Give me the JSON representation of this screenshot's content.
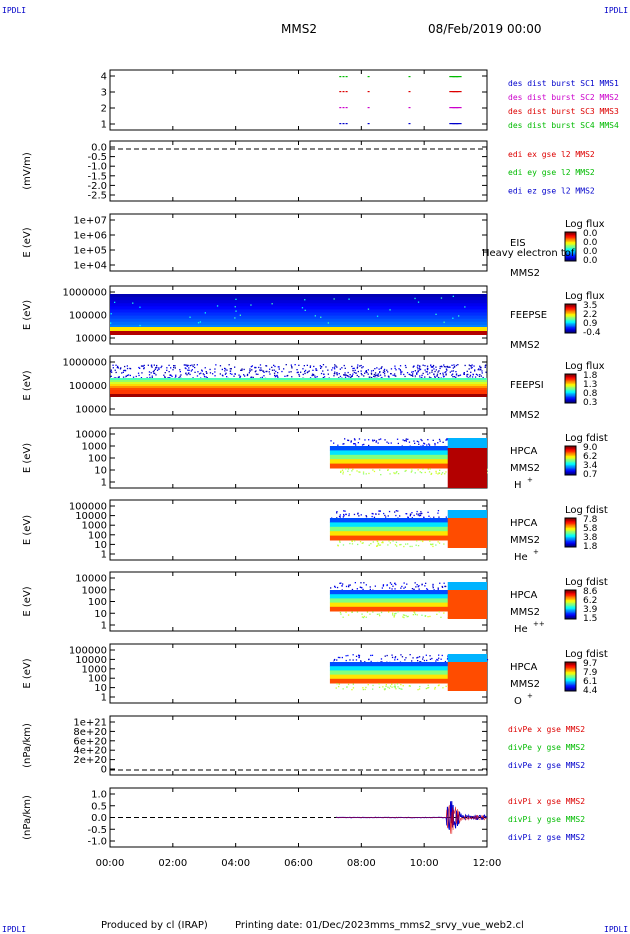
{
  "corner_label": "IPDLI",
  "header": {
    "mission": "MMS2",
    "date": "08/Feb/2019 00:00"
  },
  "footer": {
    "produced": "Produced by cl (IRAP)",
    "printing": "Printing date: 01/Dec/2023",
    "file": "mms_mms2_srvy_vue_web2.cl"
  },
  "chart_data": {
    "type": "multi-panel timeseries",
    "x_ticks": [
      "00:00",
      "02:00",
      "04:00",
      "06:00",
      "08:00",
      "10:00",
      "12:00"
    ],
    "x_range_hours": [
      0,
      12
    ],
    "panels": [
      {
        "type": "scatter",
        "name": "burst",
        "yticks": [
          "4",
          "3",
          "2",
          "1"
        ],
        "legend": [
          {
            "text": "des dist burst SC1 MMS1",
            "color": "#0000cc"
          },
          {
            "text": "des dist burst SC2 MMS2",
            "color": "#cc00cc"
          },
          {
            "text": "des dist burst SC3 MMS3",
            "color": "#dd0000"
          },
          {
            "text": "des dist burst SC4 MMS4",
            "color": "#00bb00"
          }
        ],
        "burst_times": [
          7.3,
          7.4,
          7.5,
          8.2,
          9.5,
          10.8,
          10.9,
          11.0
        ]
      },
      {
        "type": "line",
        "name": "edi",
        "ylabel": "(mV/m)",
        "yticks": [
          "0.0",
          "-0.5",
          "-1.0",
          "-1.5",
          "-2.0",
          "-2.5"
        ],
        "ylim": [
          -2.6,
          0.2
        ],
        "legend": [
          {
            "text": "edi ex gse l2 MMS2",
            "color": "#dd0000"
          },
          {
            "text": "edi ey gse l2 MMS2",
            "color": "#00bb00"
          },
          {
            "text": "edi ez gse l2 MMS2",
            "color": "#0000cc"
          }
        ]
      },
      {
        "type": "heatmap",
        "name": "eis",
        "ylabel": "E (eV)",
        "yticks": [
          "1e+07",
          "1e+06",
          "1e+05",
          "1e+04"
        ],
        "instrument": "EIS",
        "spacecraft": "MMS2",
        "overlay_text": "Heavy electron tof",
        "colorbar": {
          "title": "Log flux",
          "labels": [
            "0.0",
            "0.0",
            "0.0",
            "0.0"
          ]
        }
      },
      {
        "type": "heatmap",
        "name": "feepse",
        "ylabel": "E (eV)",
        "yticks": [
          "1000000",
          "100000",
          "10000"
        ],
        "instrument": "FEEPSE",
        "spacecraft": "MMS2",
        "colorbar": {
          "title": "Log flux",
          "labels": [
            "3.5",
            "2.2",
            "0.9",
            "-0.4"
          ]
        }
      },
      {
        "type": "heatmap",
        "name": "feepsi",
        "ylabel": "E (eV)",
        "yticks": [
          "1000000",
          "100000",
          "10000"
        ],
        "instrument": "FEEPSI",
        "spacecraft": "MMS2",
        "colorbar": {
          "title": "Log flux",
          "labels": [
            "1.8",
            "1.3",
            "0.8",
            "0.3"
          ]
        }
      },
      {
        "type": "heatmap",
        "name": "hpca-h",
        "ylabel": "E (eV)",
        "yticks": [
          "10000",
          "1000",
          "100",
          "10",
          "1"
        ],
        "instrument": "HPCA",
        "spacecraft": "MMS2",
        "species": "H",
        "charge": "+",
        "colorbar": {
          "title": "Log fdist",
          "labels": [
            "9.0",
            "6.2",
            "3.4",
            "0.7"
          ]
        },
        "onset_hours": 7.0
      },
      {
        "type": "heatmap",
        "name": "hpca-he",
        "ylabel": "E (eV)",
        "yticks": [
          "100000",
          "10000",
          "1000",
          "100",
          "10",
          "1"
        ],
        "instrument": "HPCA",
        "spacecraft": "MMS2",
        "species": "He",
        "charge": "+",
        "colorbar": {
          "title": "Log fdist",
          "labels": [
            "7.8",
            "5.8",
            "3.8",
            "1.8"
          ]
        },
        "onset_hours": 7.0
      },
      {
        "type": "heatmap",
        "name": "hpca-hepp",
        "ylabel": "E (eV)",
        "yticks": [
          "10000",
          "1000",
          "100",
          "10",
          "1"
        ],
        "instrument": "HPCA",
        "spacecraft": "MMS2",
        "species": "He",
        "charge": "++",
        "colorbar": {
          "title": "Log fdist",
          "labels": [
            "8.6",
            "6.2",
            "3.9",
            "1.5"
          ]
        },
        "onset_hours": 7.0
      },
      {
        "type": "heatmap",
        "name": "hpca-o",
        "ylabel": "E (eV)",
        "yticks": [
          "100000",
          "10000",
          "1000",
          "100",
          "10",
          "1"
        ],
        "instrument": "HPCA",
        "spacecraft": "MMS2",
        "species": "O",
        "charge": "+",
        "colorbar": {
          "title": "Log fdist",
          "labels": [
            "9.7",
            "7.9",
            "6.1",
            "4.4"
          ]
        },
        "onset_hours": 7.0
      },
      {
        "type": "line",
        "name": "divpe",
        "ylabel": "(nPa/km)",
        "yticks": [
          "1e+21",
          "8e+20",
          "6e+20",
          "4e+20",
          "2e+20",
          "0"
        ],
        "ylim": [
          -1e+20,
          1.05e+21
        ],
        "legend": [
          {
            "text": "divPe x gse MMS2",
            "color": "#dd0000"
          },
          {
            "text": "divPe y gse MMS2",
            "color": "#00bb00"
          },
          {
            "text": "divPe z gse MMS2",
            "color": "#0000cc"
          }
        ]
      },
      {
        "type": "line",
        "name": "divpi",
        "ylabel": "(nPa/km)",
        "yticks": [
          "1.0",
          "0.5",
          "0.0",
          "-0.5",
          "-1.0"
        ],
        "ylim": [
          -1.1,
          1.2
        ],
        "legend": [
          {
            "text": "divPi x gse MMS2",
            "color": "#dd0000"
          },
          {
            "text": "divPi y gse MMS2",
            "color": "#00bb00"
          },
          {
            "text": "divPi z gse MMS2",
            "color": "#0000cc"
          }
        ]
      }
    ]
  }
}
